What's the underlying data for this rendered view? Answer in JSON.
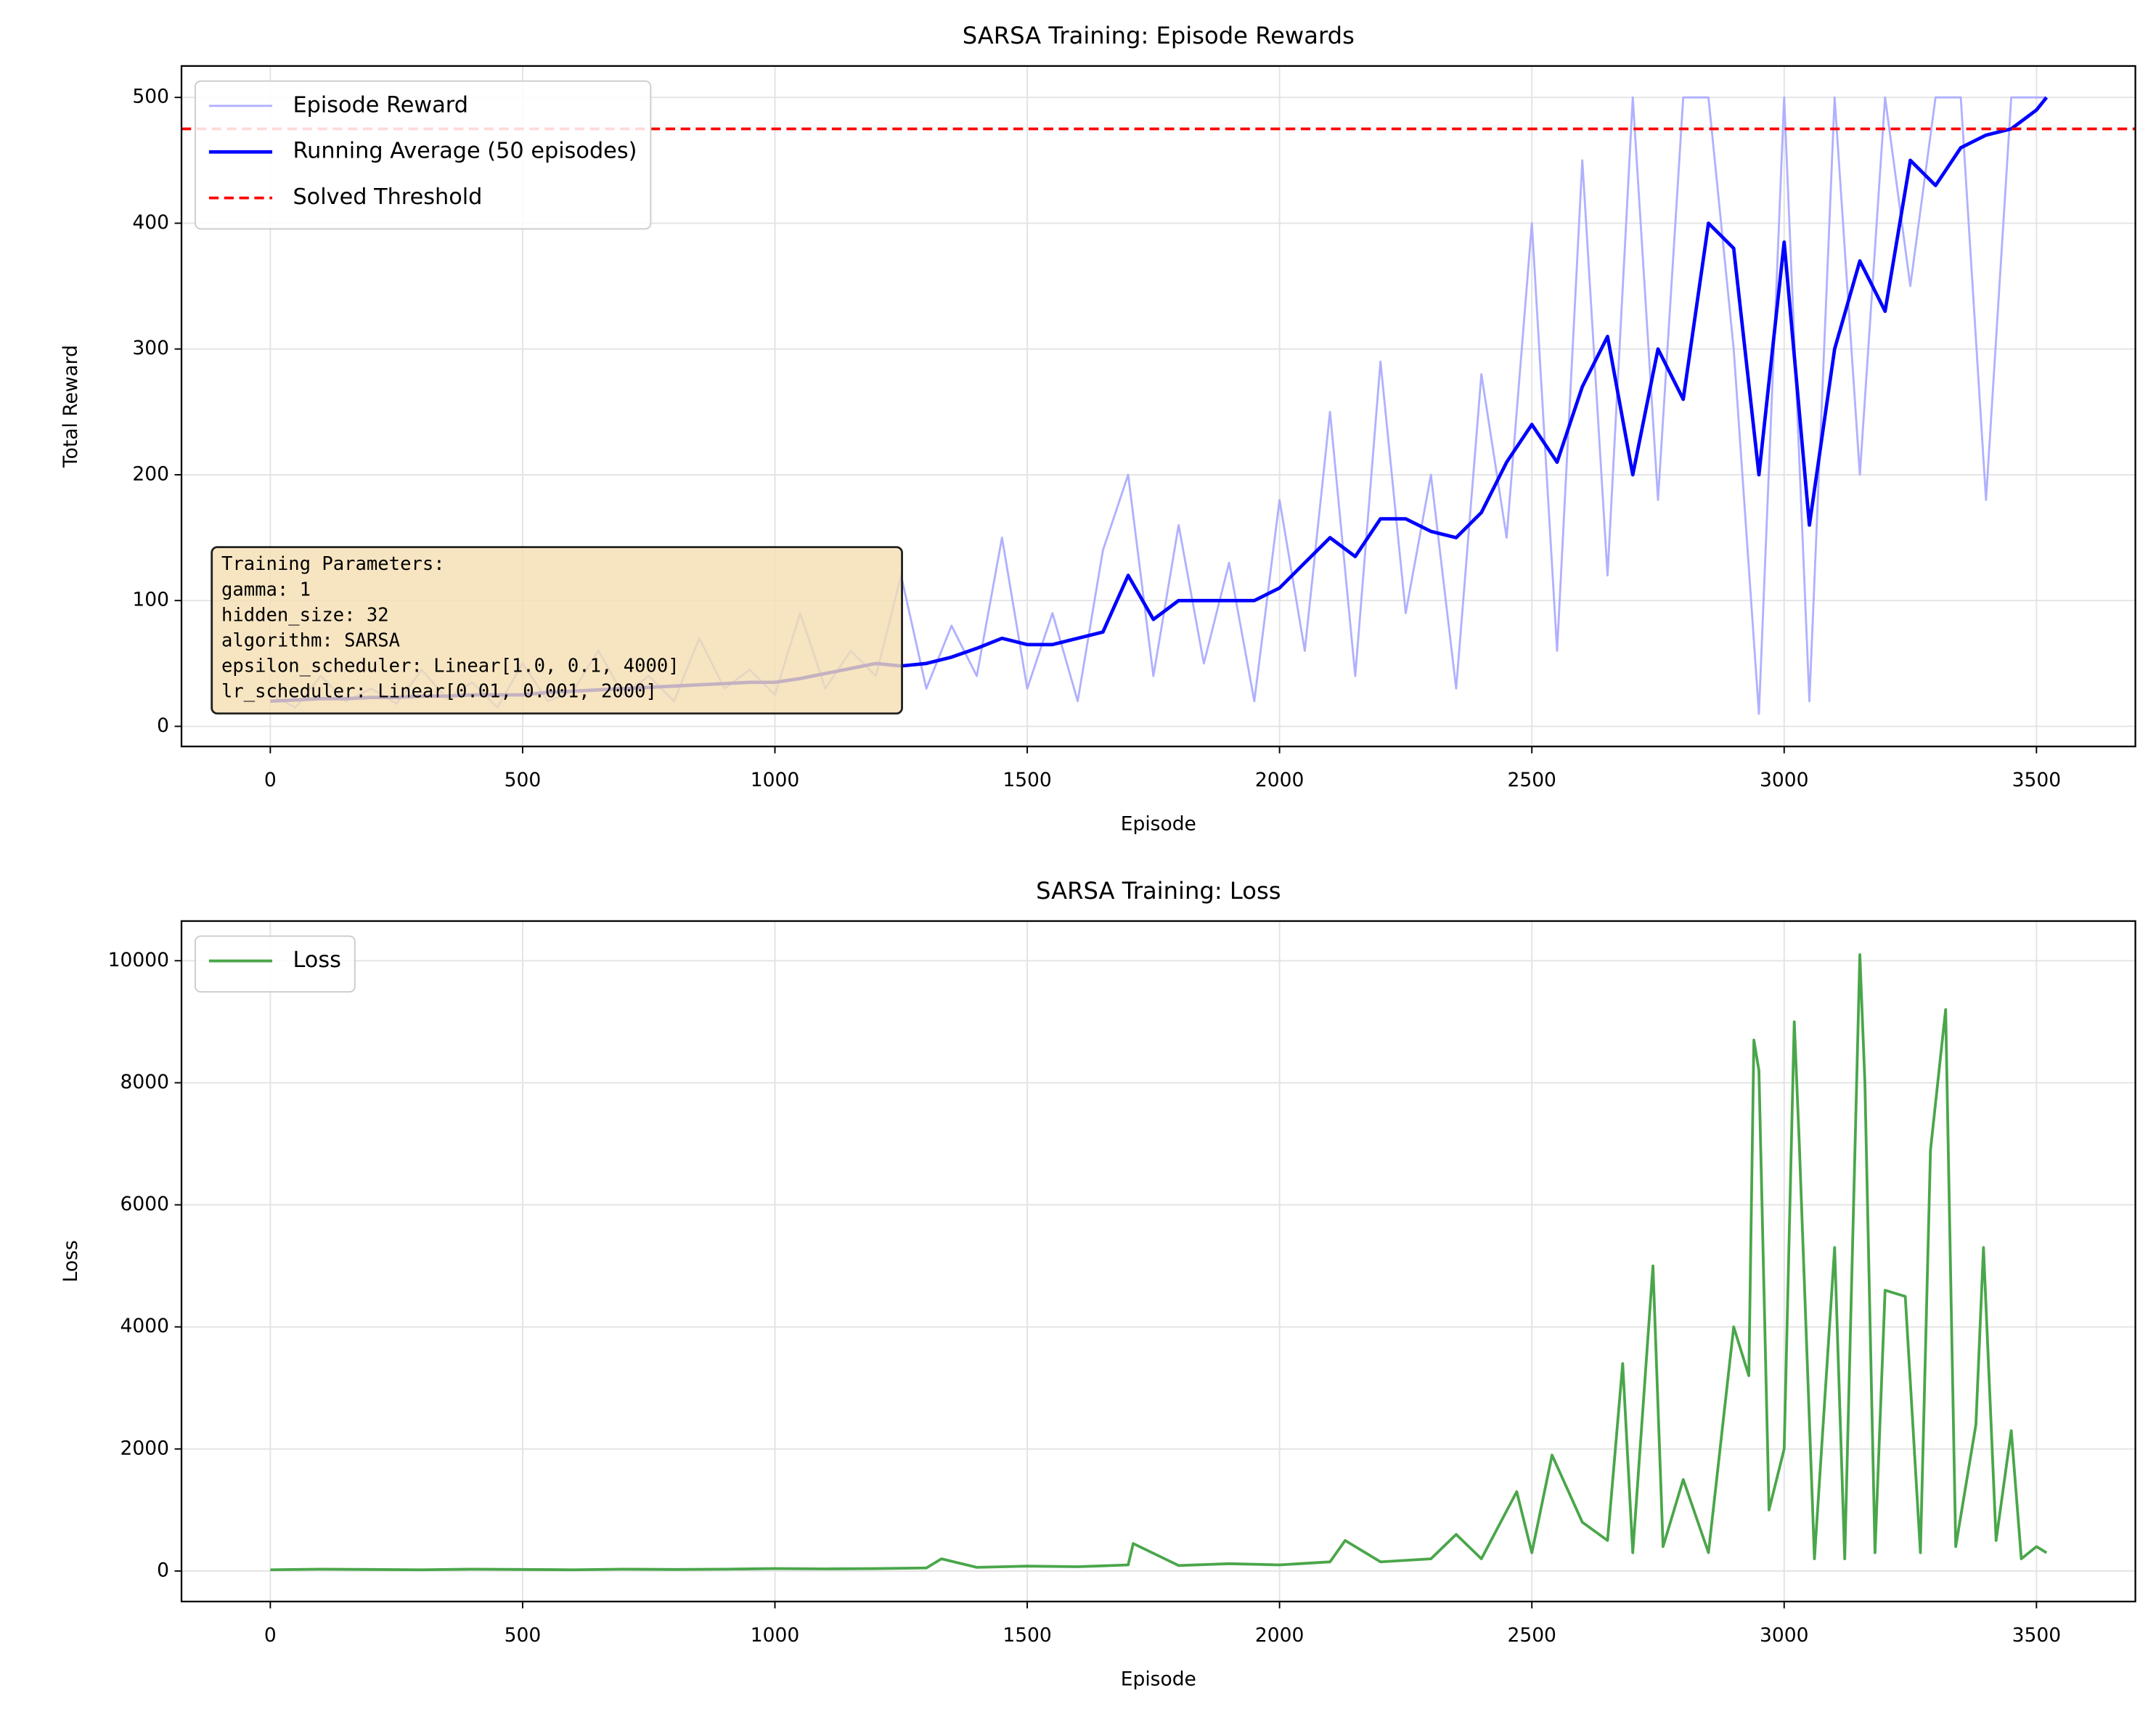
{
  "chart_data": [
    {
      "type": "line",
      "title": "SARSA Training: Episode Rewards",
      "xlabel": "Episode",
      "ylabel": "Total Reward",
      "x": [
        0,
        50,
        100,
        150,
        200,
        250,
        300,
        350,
        400,
        450,
        500,
        550,
        600,
        650,
        700,
        750,
        800,
        850,
        900,
        950,
        1000,
        1050,
        1100,
        1150,
        1200,
        1250,
        1300,
        1350,
        1400,
        1450,
        1500,
        1550,
        1600,
        1650,
        1700,
        1750,
        1800,
        1850,
        1900,
        1950,
        2000,
        2050,
        2100,
        2150,
        2200,
        2250,
        2300,
        2350,
        2400,
        2450,
        2500,
        2550,
        2600,
        2650,
        2700,
        2750,
        2800,
        2850,
        2900,
        2950,
        3000,
        3050,
        3100,
        3150,
        3200,
        3250,
        3300,
        3350,
        3400,
        3450,
        3500,
        3520
      ],
      "series": [
        {
          "name": "Episode Reward",
          "color": "#b0b0ff",
          "width": 1.5,
          "values": [
            25,
            15,
            40,
            20,
            30,
            18,
            45,
            22,
            35,
            15,
            50,
            20,
            28,
            60,
            25,
            40,
            20,
            70,
            30,
            45,
            25,
            90,
            30,
            60,
            40,
            120,
            30,
            80,
            40,
            150,
            30,
            90,
            20,
            140,
            200,
            40,
            160,
            50,
            130,
            20,
            180,
            60,
            250,
            40,
            290,
            90,
            200,
            30,
            280,
            150,
            400,
            60,
            450,
            120,
            500,
            180,
            500,
            500,
            300,
            10,
            500,
            20,
            500,
            200,
            500,
            350,
            500,
            500,
            180,
            500,
            500,
            500
          ]
        },
        {
          "name": "Running Average (50 episodes)",
          "color": "#0000ff",
          "width": 2.5,
          "values": [
            20,
            21,
            22,
            22,
            23,
            23,
            24,
            24,
            25,
            25,
            25,
            27,
            28,
            29,
            30,
            31,
            32,
            33,
            34,
            35,
            35,
            38,
            42,
            46,
            50,
            48,
            50,
            55,
            62,
            70,
            65,
            65,
            70,
            75,
            120,
            85,
            100,
            100,
            100,
            100,
            110,
            130,
            150,
            135,
            165,
            165,
            155,
            150,
            170,
            210,
            240,
            210,
            270,
            310,
            200,
            300,
            260,
            400,
            380,
            200,
            385,
            160,
            300,
            370,
            330,
            450,
            430,
            460,
            470,
            475,
            490,
            500
          ]
        }
      ],
      "threshold": {
        "name": "Solved Threshold",
        "value": 475,
        "color": "#ff0000"
      },
      "annotation": [
        "Training Parameters:",
        "gamma: 1",
        "hidden_size: 32",
        "algorithm: SARSA",
        "epsilon_scheduler: Linear[1.0, 0.1, 4000]",
        "lr_scheduler: Linear[0.01, 0.001, 2000]"
      ],
      "xlim": [
        -176,
        3696
      ],
      "ylim": [
        -16,
        525
      ],
      "xticks": [
        0,
        500,
        1000,
        1500,
        2000,
        2500,
        3000,
        3500
      ],
      "yticks": [
        0,
        100,
        200,
        300,
        400,
        500
      ],
      "grid": true,
      "legend": "upper left"
    },
    {
      "type": "line",
      "title": "SARSA Training: Loss",
      "xlabel": "Episode",
      "ylabel": "Loss",
      "x": [
        0,
        100,
        200,
        300,
        400,
        500,
        600,
        700,
        800,
        900,
        1000,
        1100,
        1200,
        1300,
        1330,
        1400,
        1500,
        1600,
        1700,
        1710,
        1800,
        1900,
        2000,
        2100,
        2130,
        2200,
        2300,
        2350,
        2400,
        2470,
        2500,
        2540,
        2600,
        2650,
        2680,
        2700,
        2740,
        2760,
        2800,
        2850,
        2900,
        2930,
        2940,
        2950,
        2970,
        3000,
        3020,
        3030,
        3060,
        3100,
        3120,
        3150,
        3160,
        3180,
        3200,
        3240,
        3270,
        3290,
        3320,
        3340,
        3380,
        3395,
        3420,
        3450,
        3470,
        3500,
        3520
      ],
      "series": [
        {
          "name": "Loss",
          "color": "#4aa64a",
          "width": 2,
          "values": [
            20,
            30,
            25,
            20,
            30,
            25,
            20,
            30,
            25,
            30,
            40,
            35,
            40,
            50,
            200,
            60,
            80,
            70,
            100,
            450,
            90,
            120,
            100,
            150,
            500,
            150,
            200,
            600,
            200,
            1300,
            300,
            1900,
            800,
            500,
            3400,
            300,
            5000,
            400,
            1500,
            300,
            4000,
            3200,
            8700,
            8200,
            1000,
            2000,
            9000,
            7000,
            200,
            5300,
            200,
            10100,
            8000,
            300,
            4600,
            4500,
            300,
            6900,
            9200,
            400,
            2400,
            5300,
            500,
            2300,
            200,
            400,
            300
          ]
        }
      ],
      "xlim": [
        -176,
        3696
      ],
      "ylim": [
        -500,
        10650
      ],
      "xticks": [
        0,
        500,
        1000,
        1500,
        2000,
        2500,
        3000,
        3500
      ],
      "yticks": [
        0,
        2000,
        4000,
        6000,
        8000,
        10000
      ],
      "grid": true,
      "legend": "upper left"
    }
  ]
}
